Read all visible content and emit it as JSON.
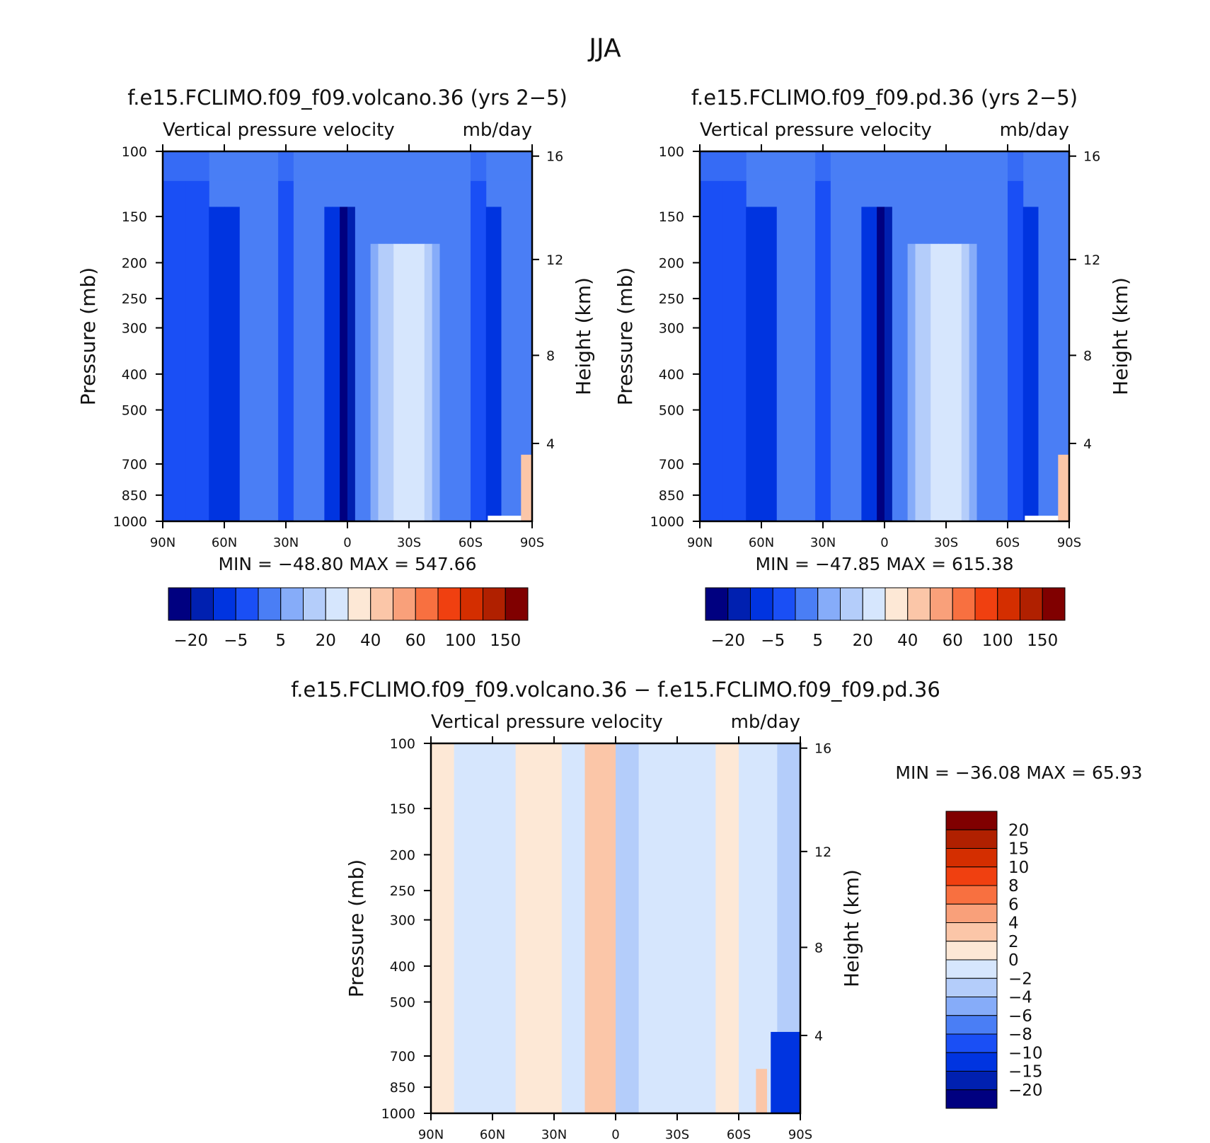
{
  "page_title": "JJA",
  "colors": {
    "lvl_neg4": "#000080",
    "lvl_neg3": "#0020b0",
    "lvl_neg2": "#0034e0",
    "lvl_neg1": "#1a4ff5",
    "lvl_0": "#4a7ef5",
    "lvl_1": "#86acf9",
    "lvl_2": "#b4cdfa",
    "lvl_3": "#d6e6fd",
    "lvl_4": "#fde8d6",
    "lvl_5": "#fbc6a8",
    "lvl_6": "#f9a07a",
    "lvl_7": "#f87040",
    "lvl_8": "#f04010",
    "lvl_9": "#d42e00",
    "lvl_10": "#b02000",
    "lvl_11": "#800000"
  },
  "chart_data": [
    {
      "type": "heatmap",
      "title": "f.e15.FCLIMO.f09_f09.volcano.36 (yrs 2−5)",
      "subtitle_left": "Vertical pressure velocity",
      "subtitle_right": "mb/day",
      "xlabel": "",
      "ylabel": "Pressure (mb)",
      "y2label": "Height (km)",
      "x_ticks": [
        "90N",
        "60N",
        "30N",
        "0",
        "30S",
        "60S",
        "90S"
      ],
      "y_ticks": [
        "100",
        "150",
        "200",
        "250",
        "300",
        "400",
        "500",
        "700",
        "850",
        "1000"
      ],
      "y2_ticks": [
        "16",
        "12",
        "8",
        "4"
      ],
      "ylim": [
        1000,
        100
      ],
      "y_scale": "log",
      "min_label": "MIN = −48.80",
      "max_label": "MAX = 547.66",
      "colorbar_labels": [
        "−20",
        "−5",
        "5",
        "20",
        "40",
        "60",
        "100",
        "150"
      ],
      "colorbar_orientation": "horizontal"
    },
    {
      "type": "heatmap",
      "title": "f.e15.FCLIMO.f09_f09.pd.36 (yrs 2−5)",
      "subtitle_left": "Vertical pressure velocity",
      "subtitle_right": "mb/day",
      "xlabel": "",
      "ylabel": "Pressure (mb)",
      "y2label": "Height (km)",
      "x_ticks": [
        "90N",
        "60N",
        "30N",
        "0",
        "30S",
        "60S",
        "90S"
      ],
      "y_ticks": [
        "100",
        "150",
        "200",
        "250",
        "300",
        "400",
        "500",
        "700",
        "850",
        "1000"
      ],
      "y2_ticks": [
        "16",
        "12",
        "8",
        "4"
      ],
      "ylim": [
        1000,
        100
      ],
      "y_scale": "log",
      "min_label": "MIN = −47.85",
      "max_label": "MAX = 615.38",
      "colorbar_labels": [
        "−20",
        "−5",
        "5",
        "20",
        "40",
        "60",
        "100",
        "150"
      ],
      "colorbar_orientation": "horizontal"
    },
    {
      "type": "heatmap",
      "title": "f.e15.FCLIMO.f09_f09.volcano.36 − f.e15.FCLIMO.f09_f09.pd.36",
      "subtitle_left": "Vertical pressure velocity",
      "subtitle_right": "mb/day",
      "xlabel": "",
      "ylabel": "Pressure (mb)",
      "y2label": "Height (km)",
      "x_ticks": [
        "90N",
        "60N",
        "30N",
        "0",
        "30S",
        "60S",
        "90S"
      ],
      "y_ticks": [
        "100",
        "150",
        "200",
        "250",
        "300",
        "400",
        "500",
        "700",
        "850",
        "1000"
      ],
      "y2_ticks": [
        "16",
        "12",
        "8",
        "4"
      ],
      "ylim": [
        1000,
        100
      ],
      "y_scale": "log",
      "min_label": "MIN = −36.08",
      "max_label": "MAX = 65.93",
      "colorbar_labels": [
        "20",
        "15",
        "10",
        "8",
        "6",
        "4",
        "2",
        "0",
        "−2",
        "−4",
        "−6",
        "−8",
        "−10",
        "−15",
        "−20"
      ],
      "colorbar_orientation": "vertical"
    }
  ]
}
